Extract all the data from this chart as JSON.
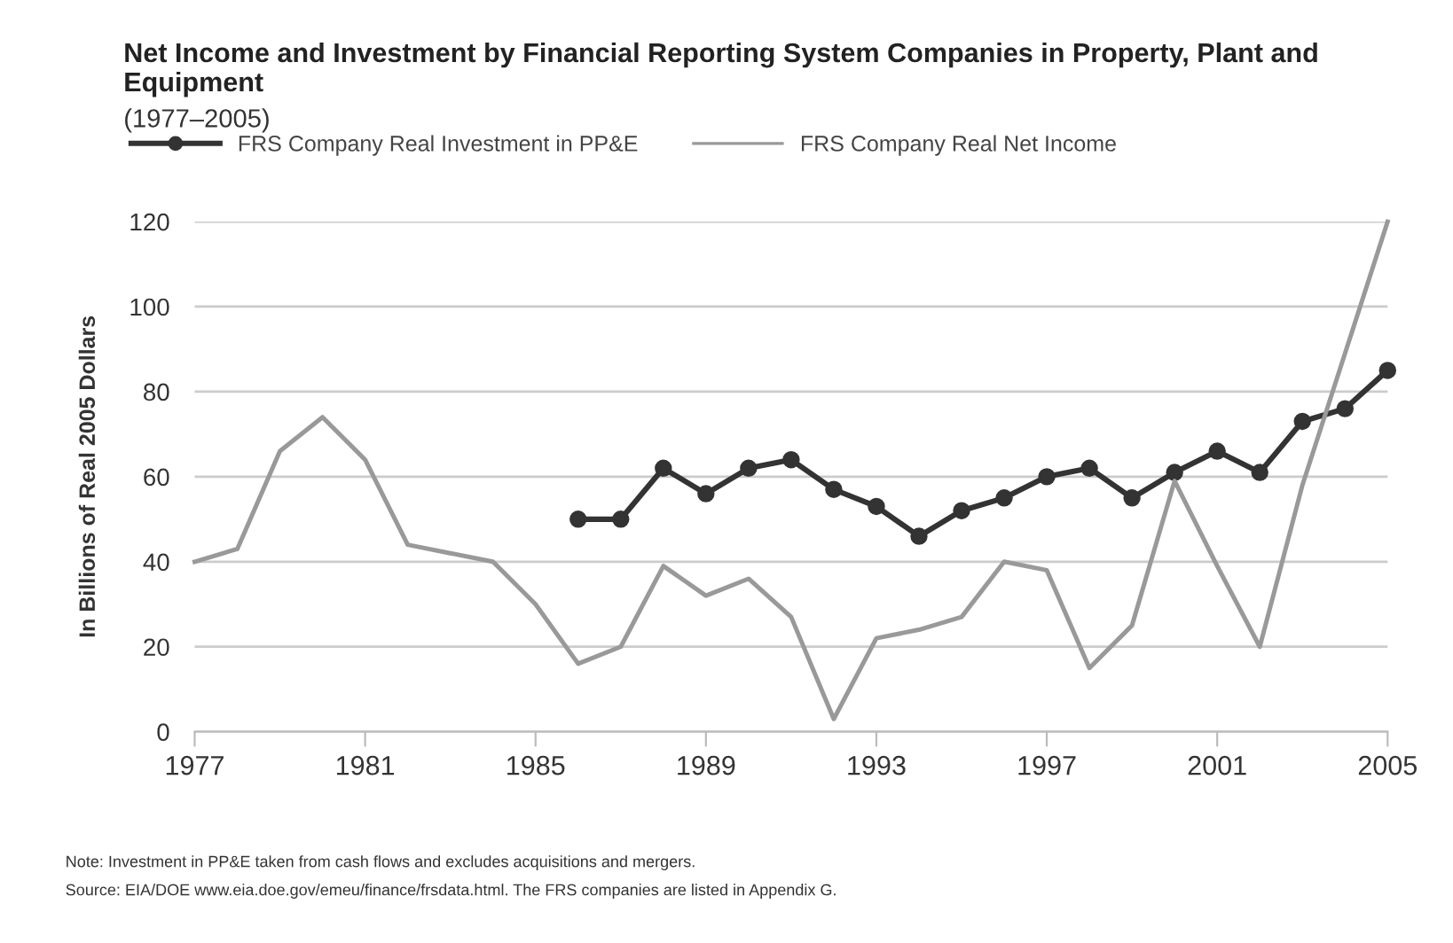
{
  "chart_data": {
    "type": "line",
    "title": "Net Income and Investment by Financial Reporting System Companies in Property, Plant and Equipment",
    "subtitle": "(1977–2005)",
    "ylabel": "In Billions of Real 2005 Dollars",
    "series": [
      {
        "name": "FRS Company Real Investment in PP&E",
        "color": "#333333",
        "marker": "circle",
        "x": [
          1986,
          1987,
          1988,
          1989,
          1990,
          1991,
          1992,
          1993,
          1994,
          1995,
          1996,
          1997,
          1998,
          1999,
          2000,
          2001,
          2002,
          2003,
          2004,
          2005
        ],
        "values": [
          50,
          50,
          62,
          56,
          62,
          64,
          57,
          53,
          46,
          52,
          55,
          60,
          62,
          55,
          61,
          66,
          61,
          73,
          76,
          85
        ]
      },
      {
        "name": "FRS Company Real Net Income",
        "color": "#999999",
        "marker": "none",
        "x": [
          1977,
          1978,
          1979,
          1980,
          1981,
          1982,
          1983,
          1984,
          1985,
          1986,
          1987,
          1988,
          1989,
          1990,
          1991,
          1992,
          1993,
          1994,
          1995,
          1996,
          1997,
          1998,
          1999,
          2000,
          2001,
          2002,
          2003,
          2004,
          2005
        ],
        "values": [
          40,
          43,
          66,
          74,
          64,
          44,
          42,
          40,
          30,
          16,
          20,
          39,
          32,
          36,
          27,
          3,
          22,
          24,
          27,
          40,
          38,
          15,
          25,
          59,
          39,
          20,
          58,
          89,
          120
        ]
      }
    ],
    "xlim": [
      1977,
      2005
    ],
    "xticks": [
      1977,
      1981,
      1985,
      1989,
      1993,
      1997,
      2001,
      2005
    ],
    "ylim": [
      0,
      120
    ],
    "yticks": [
      0,
      20,
      40,
      60,
      80,
      100,
      120
    ],
    "grid": "y",
    "legend": "top left",
    "annotations": [
      "Note: Investment in PP&E taken from cash flows and excludes acquisitions and mergers.",
      "Source: EIA/DOE www.eia.doe.gov/emeu/finance/frsdata.html. The FRS companies are listed in Appendix G."
    ]
  }
}
